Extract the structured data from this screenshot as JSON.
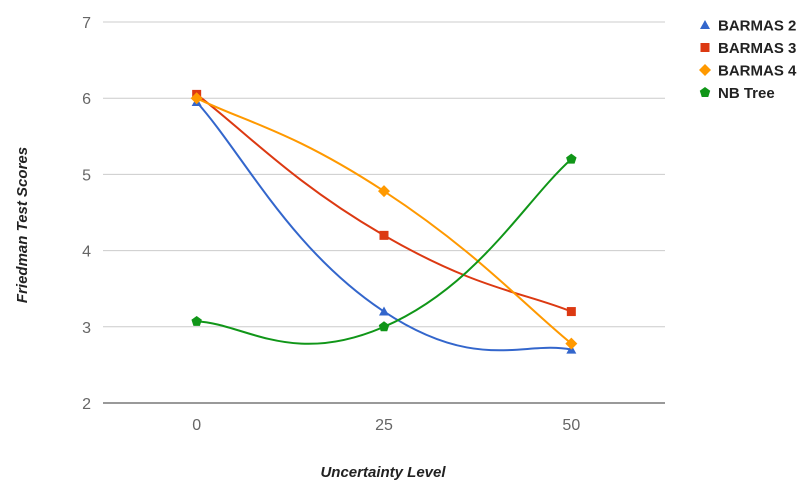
{
  "chart_data": {
    "type": "line",
    "title": "",
    "xlabel": "Uncertainty Level",
    "ylabel": "Friedman Test Scores",
    "x": [
      0,
      25,
      50
    ],
    "xlim": [
      -12.5,
      62.5
    ],
    "ylim": [
      2,
      7
    ],
    "x_ticks": [
      "0",
      "25",
      "50"
    ],
    "y_ticks": [
      "2",
      "3",
      "4",
      "5",
      "6",
      "7"
    ],
    "grid": true,
    "smooth": true,
    "legend_position": "top-right",
    "series": [
      {
        "name": "BARMAS 2",
        "values": [
          5.95,
          3.2,
          2.7
        ],
        "color": "#3366cc",
        "marker": "triangle"
      },
      {
        "name": "BARMAS 3",
        "values": [
          6.05,
          4.2,
          3.2
        ],
        "color": "#dc3912",
        "marker": "square"
      },
      {
        "name": "BARMAS 4",
        "values": [
          6.0,
          4.78,
          2.78
        ],
        "color": "#ff9900",
        "marker": "diamond"
      },
      {
        "name": "NB Tree",
        "values": [
          3.07,
          3.0,
          5.2
        ],
        "color": "#109618",
        "marker": "pentagon"
      }
    ]
  }
}
